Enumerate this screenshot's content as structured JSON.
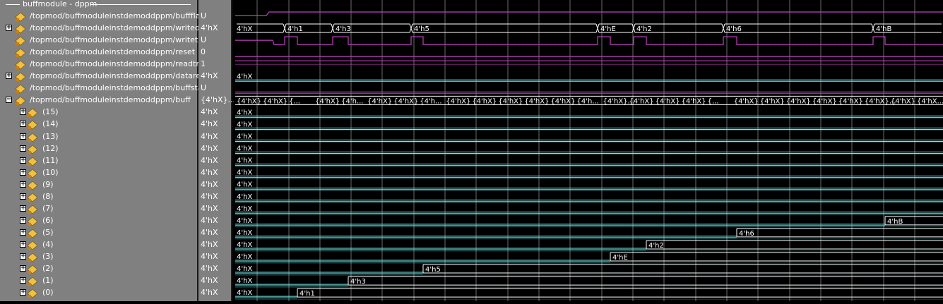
{
  "group": {
    "title": "buffmodule - dppm"
  },
  "signals": [
    {
      "name": "/topmod/buffmoduleinstdemoddppm/buffflags...",
      "value": "U",
      "expander": false,
      "kind": "bit"
    },
    {
      "name": "/topmod/buffmoduleinstdemoddppm/writedata",
      "value": "4'hX",
      "expander": true,
      "kind": "bus"
    },
    {
      "name": "/topmod/buffmoduleinstdemoddppm/writetrigger",
      "value": "U",
      "expander": false,
      "kind": "bit"
    },
    {
      "name": "/topmod/buffmoduleinstdemoddppm/reset",
      "value": "0",
      "expander": false,
      "kind": "bit"
    },
    {
      "name": "/topmod/buffmoduleinstdemoddppm/readtrigger",
      "value": "1",
      "expander": false,
      "kind": "bit"
    },
    {
      "name": "/topmod/buffmoduleinstdemoddppm/dataread",
      "value": "4'hX",
      "expander": true,
      "kind": "bus"
    },
    {
      "name": "/topmod/buffmoduleinstdemoddppm/buffstatu...",
      "value": "U",
      "expander": false,
      "kind": "bit"
    },
    {
      "name": "/topmod/buffmoduleinstdemoddppm/buff",
      "value": "{4'hX}...",
      "expander": true,
      "kind": "array"
    },
    {
      "name": "(15)",
      "value": "4'hX",
      "expander": true,
      "kind": "child"
    },
    {
      "name": "(14)",
      "value": "4'hX",
      "expander": true,
      "kind": "child"
    },
    {
      "name": "(13)",
      "value": "4'hX",
      "expander": true,
      "kind": "child"
    },
    {
      "name": "(12)",
      "value": "4'hX",
      "expander": true,
      "kind": "child"
    },
    {
      "name": "(11)",
      "value": "4'hX",
      "expander": true,
      "kind": "child"
    },
    {
      "name": "(10)",
      "value": "4'hX",
      "expander": true,
      "kind": "child"
    },
    {
      "name": "(9)",
      "value": "4'hX",
      "expander": true,
      "kind": "child"
    },
    {
      "name": "(8)",
      "value": "4'hX",
      "expander": true,
      "kind": "child"
    },
    {
      "name": "(7)",
      "value": "4'hX",
      "expander": true,
      "kind": "child"
    },
    {
      "name": "(6)",
      "value": "4'hX",
      "expander": true,
      "kind": "child"
    },
    {
      "name": "(5)",
      "value": "4'hX",
      "expander": true,
      "kind": "child"
    },
    {
      "name": "(4)",
      "value": "4'hX",
      "expander": true,
      "kind": "child"
    },
    {
      "name": "(3)",
      "value": "4'hX",
      "expander": true,
      "kind": "child"
    },
    {
      "name": "(2)",
      "value": "4'hX",
      "expander": true,
      "kind": "child"
    },
    {
      "name": "(1)",
      "value": "4'hX",
      "expander": true,
      "kind": "child"
    },
    {
      "name": "(0)",
      "value": "4'hX",
      "expander": true,
      "kind": "child"
    }
  ],
  "waves": {
    "writedata": {
      "initial": "4'hX",
      "values": [
        "4'h1",
        "4'h3",
        "4'h5",
        "4'hE",
        "4'h2",
        "4'h6",
        "4'hB"
      ]
    },
    "dataread": {
      "label": "4'hX"
    },
    "buff_cells": [
      "{4'hX}",
      "{4'hX}",
      "{...",
      "{4'hX}",
      "{4'h...",
      "{4'hX}",
      "{4'hX}",
      "{4'h...",
      "{4'hX}",
      "{4'hX}",
      "{4'hX}",
      "{4'hX}",
      "{4'hX}",
      "{4'h...",
      "{4'hX}...",
      "{4'hX}",
      "{4'hX}",
      "{4'hX}",
      "{...",
      "{4'hX}",
      "{4'hX}",
      "{4'hX}",
      "{4'hX}",
      "{4'hX}",
      "{4'hX}...",
      "{4'hX}",
      "{4'hX..."
    ],
    "children": [
      {
        "index": "(15)",
        "initial": "4'hX",
        "written": ""
      },
      {
        "index": "(14)",
        "initial": "4'hX",
        "written": ""
      },
      {
        "index": "(13)",
        "initial": "4'hX",
        "written": ""
      },
      {
        "index": "(12)",
        "initial": "4'hX",
        "written": ""
      },
      {
        "index": "(11)",
        "initial": "4'hX",
        "written": ""
      },
      {
        "index": "(10)",
        "initial": "4'hX",
        "written": ""
      },
      {
        "index": "(9)",
        "initial": "4'hX",
        "written": ""
      },
      {
        "index": "(8)",
        "initial": "4'hX",
        "written": ""
      },
      {
        "index": "(7)",
        "initial": "4'hX",
        "written": ""
      },
      {
        "index": "(6)",
        "initial": "4'hX",
        "written": "4'hB"
      },
      {
        "index": "(5)",
        "initial": "4'hX",
        "written": "4'h6"
      },
      {
        "index": "(4)",
        "initial": "4'hX",
        "written": "4'h2"
      },
      {
        "index": "(3)",
        "initial": "4'hX",
        "written": "4'hE"
      },
      {
        "index": "(2)",
        "initial": "4'hX",
        "written": "4'h5"
      },
      {
        "index": "(1)",
        "initial": "4'hX",
        "written": "4'h3"
      },
      {
        "index": "(0)",
        "initial": "4'hX",
        "written": "4'h1"
      }
    ]
  },
  "colors": {
    "panel_bg": "#808080",
    "wave_bg": "#000000",
    "grid": "#ffffff",
    "bit_wave": "#c040c0",
    "bus_wave": "#6ff0f0",
    "bus_written": "#ffffff",
    "icon_diamond": "#f0c040"
  }
}
